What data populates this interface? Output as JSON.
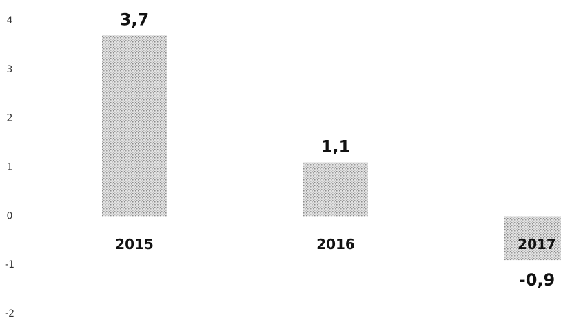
{
  "chart_data": {
    "type": "bar",
    "categories": [
      "2015",
      "2016",
      "2017"
    ],
    "values": [
      3.7,
      1.1,
      -0.9
    ],
    "value_labels": [
      "3,7",
      "1,1",
      "-0,9"
    ],
    "color": "#c8c8c8",
    "ylim": [
      -2,
      4
    ],
    "yticks": [
      4,
      3,
      2,
      1,
      0,
      -1,
      -2
    ],
    "grid": false
  }
}
